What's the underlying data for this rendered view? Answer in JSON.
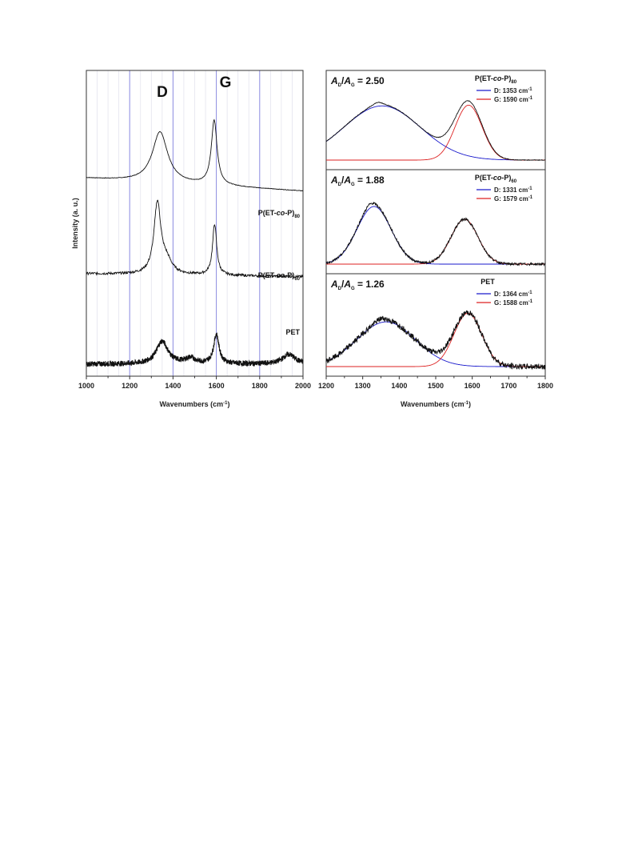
{
  "chart_data": [
    {
      "type": "line",
      "panel": "left",
      "xlabel": "Wavenumbers (cm",
      "xlabel_sup": "-1",
      "xlabel_close": ")",
      "ylabel": "Intensity (a. u.)",
      "xlim": [
        1000,
        2000
      ],
      "x_ticks": [
        "1000",
        "1200",
        "1400",
        "1600",
        "1800",
        "2000"
      ],
      "grid": "vertical lines every 50 cm-1, blue lines at 1200, 1400, 1600, 1800",
      "peak_labels": [
        {
          "text": "D",
          "x": 1350
        },
        {
          "text": "G",
          "x": 1600
        }
      ],
      "series": [
        {
          "name": "P(ET-co-P)80",
          "label_main": "P(ET-",
          "label_italic": "co",
          "label_end": "-P)",
          "label_sub": "80",
          "baseline": 1.0,
          "slope": -0.2,
          "peaks": [
            [
              1340,
              0.55,
              85
            ],
            [
              1590,
              0.7,
              32
            ]
          ],
          "noise": 0.003
        },
        {
          "name": "P(ET-co-P)60",
          "label_main": "P(ET-",
          "label_italic": "co",
          "label_end": "-P)",
          "label_sub": "60",
          "baseline": 0.0,
          "slope": -0.05,
          "peaks": [
            [
              1328,
              0.58,
              38
            ],
            [
              1370,
              0.1,
              60
            ],
            [
              1592,
              0.42,
              23
            ]
          ],
          "noise": 0.01
        },
        {
          "name": "PET",
          "label_main": "PET",
          "label_italic": "",
          "label_end": "",
          "label_sub": "",
          "baseline": 0.0,
          "slope": 0.0,
          "peaks": [
            [
              1350,
              0.21,
              65
            ],
            [
              1480,
              0.05,
              60
            ],
            [
              1600,
              0.27,
              30
            ],
            [
              1935,
              0.09,
              70
            ]
          ],
          "noise": 0.025
        }
      ]
    },
    {
      "type": "line",
      "panel": "right",
      "xlabel": "Wavenumbers (cm",
      "xlabel_sup": "-1",
      "xlabel_close": ")",
      "xlim": [
        1200,
        1800
      ],
      "x_ticks": [
        "1200",
        "1300",
        "1400",
        "1500",
        "1600",
        "1700",
        "1800"
      ],
      "subplots": [
        {
          "sample_main": "P(ET-",
          "sample_italic": "co",
          "sample_end": "-P)",
          "sample_sub": "80",
          "ratio_A": "A",
          "ratio_D": "D",
          "ratio_sep": "/",
          "ratio_G": "G",
          "ratio_value": " = 2.50",
          "legend": [
            {
              "label": "D: 1353 cm",
              "sup": "-1",
              "color": "#1a1acc"
            },
            {
              "label": "G: 1590 cm",
              "sup": "-1",
              "color": "#dd2222"
            }
          ],
          "D": {
            "center": 1353,
            "height": 0.72,
            "width": 85
          },
          "G": {
            "center": 1590,
            "height": 0.73,
            "width": 32
          },
          "noise": 0.004
        },
        {
          "sample_main": "P(ET-",
          "sample_italic": "co",
          "sample_end": "-P)",
          "sample_sub": "60",
          "ratio_A": "A",
          "ratio_D": "D",
          "ratio_sep": "/",
          "ratio_G": "G",
          "ratio_value": " = 1.88",
          "legend": [
            {
              "label": "D: 1331 cm",
              "sup": "-1",
              "color": "#1a1acc"
            },
            {
              "label": "G: 1579 cm",
              "sup": "-1",
              "color": "#dd2222"
            }
          ],
          "D": {
            "center": 1331,
            "height": 0.72,
            "width": 38
          },
          "G": {
            "center": 1579,
            "height": 0.56,
            "width": 32
          },
          "noise": 0.015
        },
        {
          "sample_main": "PET",
          "sample_italic": "",
          "sample_end": "",
          "sample_sub": "",
          "ratio_A": "A",
          "ratio_D": "D",
          "ratio_sep": "/",
          "ratio_G": "G",
          "ratio_value": " = 1.26",
          "legend": [
            {
              "label": "D: 1364 cm",
              "sup": "-1",
              "color": "#1a1acc"
            },
            {
              "label": "G: 1588 cm",
              "sup": "-1",
              "color": "#dd2222"
            }
          ],
          "D": {
            "center": 1364,
            "height": 0.57,
            "width": 65
          },
          "G": {
            "center": 1588,
            "height": 0.68,
            "width": 33
          },
          "noise": 0.035
        }
      ]
    }
  ]
}
